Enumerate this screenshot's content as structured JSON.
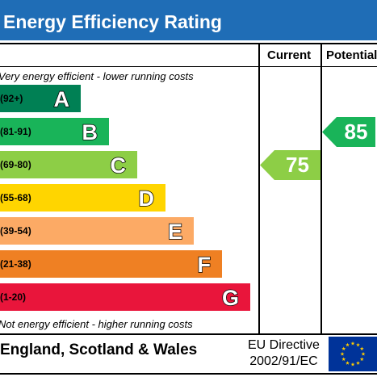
{
  "chart_data": {
    "type": "bar",
    "title": "Energy Efficiency Rating",
    "columns": [
      "Current",
      "Potential"
    ],
    "top_note": "Very energy efficient - lower running costs",
    "bottom_note": "Not energy efficient - higher running costs",
    "bands": [
      {
        "letter": "A",
        "range": "(92+)",
        "color": "#008054"
      },
      {
        "letter": "B",
        "range": "(81-91)",
        "color": "#19b459"
      },
      {
        "letter": "C",
        "range": "(69-80)",
        "color": "#8dce46"
      },
      {
        "letter": "D",
        "range": "(55-68)",
        "color": "#ffd500"
      },
      {
        "letter": "E",
        "range": "(39-54)",
        "color": "#fcaa65"
      },
      {
        "letter": "F",
        "range": "(21-38)",
        "color": "#ef8023"
      },
      {
        "letter": "G",
        "range": "(1-20)",
        "color": "#e9153b"
      }
    ],
    "current": {
      "value": "75",
      "band": "C",
      "color": "#8dce46"
    },
    "potential": {
      "value": "85",
      "band": "B",
      "color": "#19b459"
    }
  },
  "footer": {
    "country": "England, Scotland & Wales",
    "directive_line1": "EU Directive",
    "directive_line2": "2002/91/EC",
    "flag_icon": "eu-flag-icon",
    "flag_color": "#003399",
    "star_color": "#ffcc00"
  }
}
